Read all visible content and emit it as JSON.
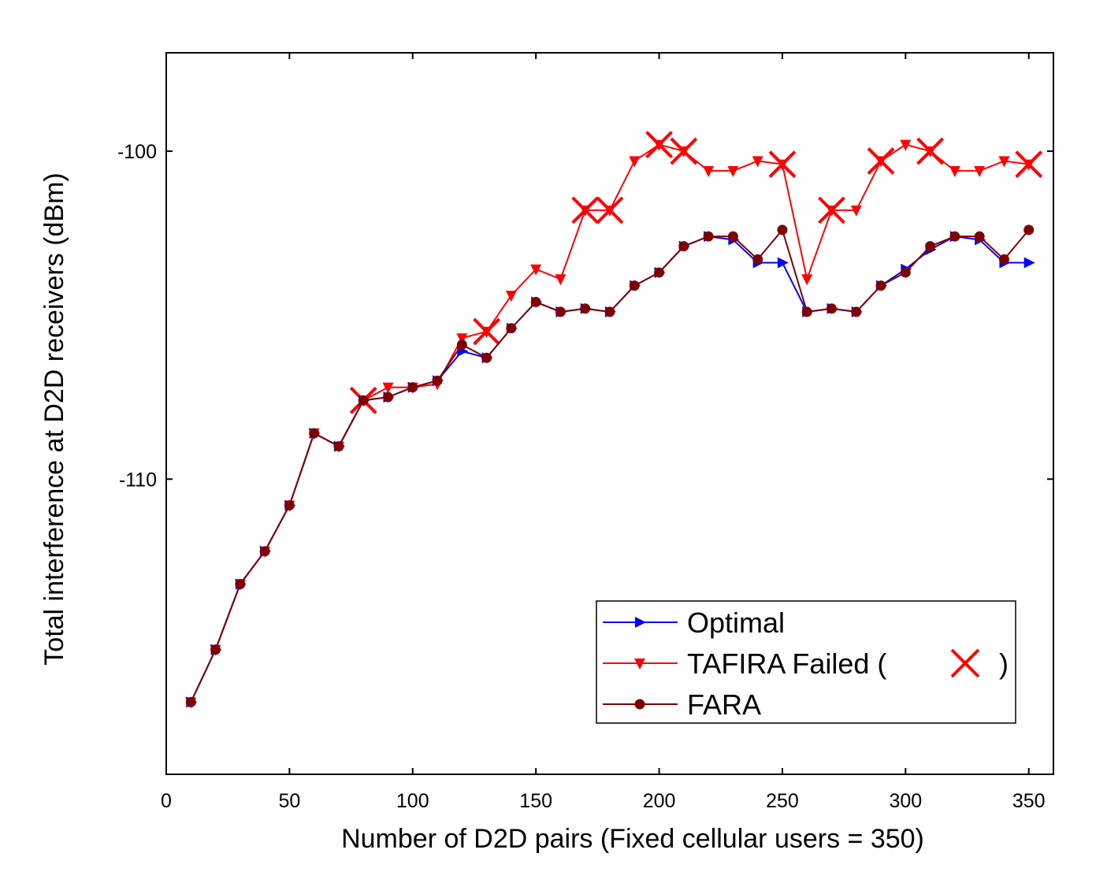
{
  "chart_data": {
    "type": "line",
    "xlabel": "Number of D2D pairs (Fixed cellular users = 350)",
    "ylabel": "Total interference at D2D receivers (dBm)",
    "xlim": [
      0,
      360
    ],
    "ylim": [
      -119,
      -97
    ],
    "x_ticks": [
      0,
      50,
      100,
      150,
      200,
      250,
      300,
      350
    ],
    "y_ticks": [
      -100,
      -110
    ],
    "x": [
      10,
      20,
      30,
      40,
      50,
      60,
      70,
      80,
      90,
      100,
      110,
      120,
      130,
      140,
      150,
      160,
      170,
      180,
      190,
      200,
      210,
      220,
      230,
      240,
      250,
      260,
      270,
      280,
      290,
      300,
      310,
      320,
      330,
      340,
      350
    ],
    "series": [
      {
        "name": "Optimal",
        "color": "#0000ff",
        "marker": "triangle-right",
        "values": [
          -116.8,
          -115.2,
          -113.2,
          -112.2,
          -110.8,
          -108.6,
          -109.0,
          -107.6,
          -107.5,
          -107.2,
          -107.0,
          -106.1,
          -106.3,
          -105.4,
          -104.6,
          -104.9,
          -104.8,
          -104.9,
          -104.1,
          -103.7,
          -102.9,
          -102.6,
          -102.7,
          -103.4,
          -103.4,
          -104.9,
          -104.8,
          -104.9,
          -104.1,
          -103.6,
          -103.0,
          -102.6,
          -102.7,
          -103.4,
          -103.4
        ]
      },
      {
        "name": "TAFIRA Failed (",
        "color": "#ff0000",
        "marker": "triangle-down",
        "values": [
          -116.8,
          -115.2,
          -113.2,
          -112.2,
          -110.8,
          -108.6,
          -109.0,
          -107.6,
          -107.2,
          -107.2,
          -107.1,
          -105.7,
          -105.5,
          -104.4,
          -103.6,
          -103.9,
          -101.8,
          -101.8,
          -100.3,
          -99.8,
          -100.0,
          -100.6,
          -100.6,
          -100.3,
          -100.4,
          -103.9,
          -101.8,
          -101.8,
          -100.3,
          -99.8,
          -100.0,
          -100.6,
          -100.6,
          -100.3,
          -100.4
        ],
        "failed_x": [
          80,
          130,
          170,
          180,
          200,
          210,
          250,
          270,
          290,
          310,
          350
        ]
      },
      {
        "name": "FARA",
        "color": "#800000",
        "marker": "circle",
        "values": [
          -116.8,
          -115.2,
          -113.2,
          -112.2,
          -110.8,
          -108.6,
          -109.0,
          -107.6,
          -107.5,
          -107.2,
          -107.0,
          -105.9,
          -106.3,
          -105.4,
          -104.6,
          -104.9,
          -104.8,
          -104.9,
          -104.1,
          -103.7,
          -102.9,
          -102.6,
          -102.6,
          -103.3,
          -102.4,
          -104.9,
          -104.8,
          -104.9,
          -104.1,
          -103.7,
          -102.9,
          -102.6,
          -102.6,
          -103.3,
          -102.4
        ]
      }
    ],
    "legend": {
      "position": "bottom-right",
      "closing_paren": ")"
    }
  }
}
